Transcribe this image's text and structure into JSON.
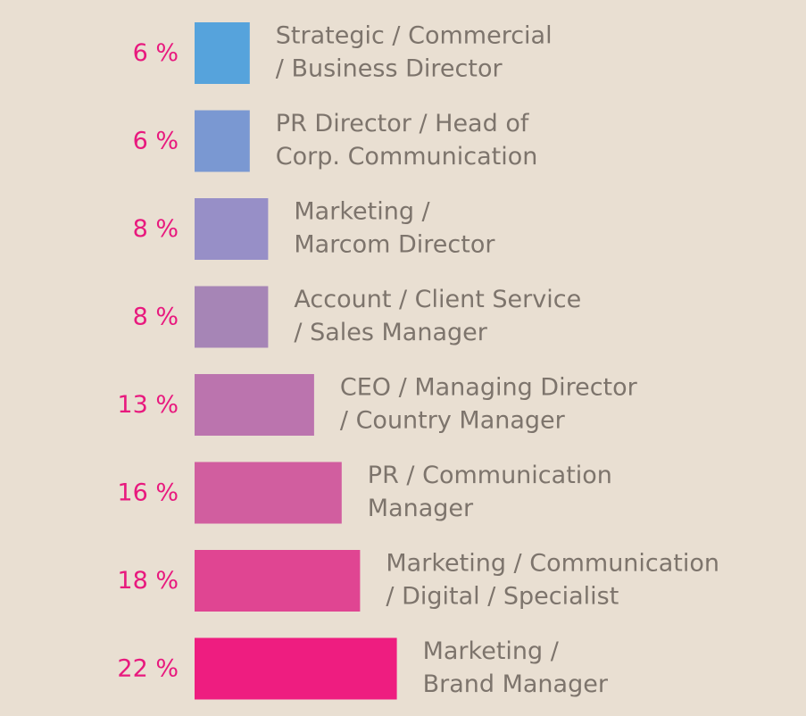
{
  "chart_data": {
    "type": "bar",
    "orientation": "horizontal",
    "title": "",
    "xlabel": "",
    "ylabel": "",
    "grid": false,
    "legend": "none",
    "value_suffix": " %",
    "categories": [
      [
        "Strategic / Commercial",
        "/ Business Director"
      ],
      [
        "PR Director / Head of",
        "Corp. Communication"
      ],
      [
        "Marketing /",
        "Marcom Director"
      ],
      [
        "Account / Client Service",
        "/ Sales Manager"
      ],
      [
        "CEO / Managing Director",
        "/ Country Manager"
      ],
      [
        "PR / Communication",
        "Manager"
      ],
      [
        "Marketing / Communication",
        "/ Digital / Specialist"
      ],
      [
        "Marketing /",
        "Brand Manager"
      ]
    ],
    "values": [
      6,
      6,
      8,
      8,
      13,
      16,
      18,
      22
    ],
    "bar_colors": [
      "#56a3dc",
      "#7a98d2",
      "#978fc7",
      "#a685b6",
      "#bb74ae",
      "#d15e9f",
      "#e04592",
      "#ee1d80"
    ],
    "label_color": "#7d746c",
    "value_color": "#e8197e",
    "background": "#e9dfd2"
  }
}
